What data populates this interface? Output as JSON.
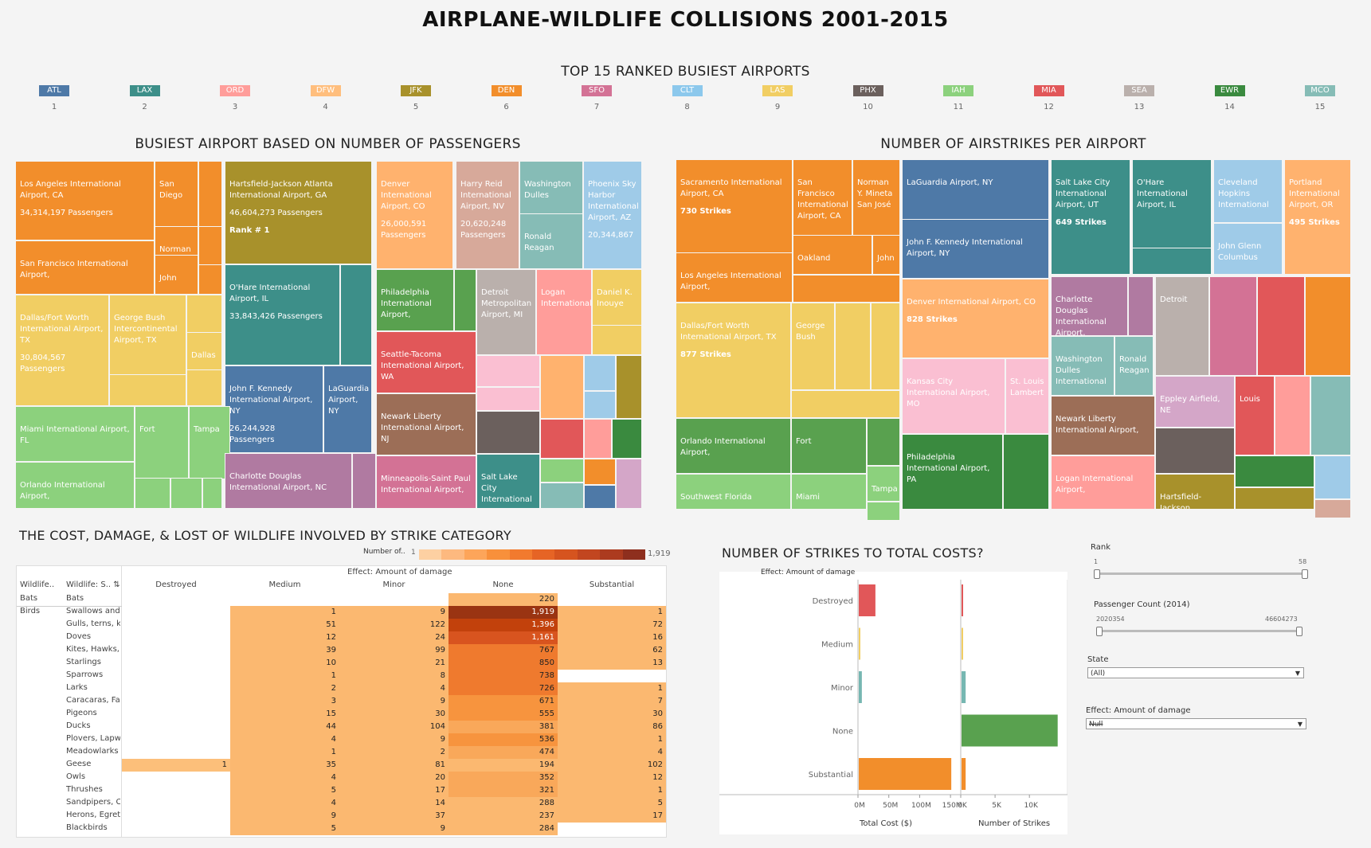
{
  "title": "AIRPLANE-WILDLIFE COLLISIONS 2001-2015",
  "ranked": {
    "title": "TOP 15 RANKED BUSIEST AIRPORTS",
    "items": [
      {
        "code": "ATL",
        "rank": "1",
        "color": "#4e79a7"
      },
      {
        "code": "LAX",
        "rank": "2",
        "color": "#3d8f89"
      },
      {
        "code": "ORD",
        "rank": "3",
        "color": "#ff9d9a"
      },
      {
        "code": "DFW",
        "rank": "4",
        "color": "#ffbe7d"
      },
      {
        "code": "JFK",
        "rank": "5",
        "color": "#a8912b"
      },
      {
        "code": "DEN",
        "rank": "6",
        "color": "#f28e2b"
      },
      {
        "code": "SFO",
        "rank": "7",
        "color": "#d37295"
      },
      {
        "code": "CLT",
        "rank": "8",
        "color": "#8cc8ec"
      },
      {
        "code": "LAS",
        "rank": "9",
        "color": "#f1ce63"
      },
      {
        "code": "PHX",
        "rank": "10",
        "color": "#6b605d"
      },
      {
        "code": "IAH",
        "rank": "11",
        "color": "#8cd17d"
      },
      {
        "code": "MIA",
        "rank": "12",
        "color": "#e15759"
      },
      {
        "code": "SEA",
        "rank": "13",
        "color": "#bab0ac"
      },
      {
        "code": "EWR",
        "rank": "14",
        "color": "#3a8a3f"
      },
      {
        "code": "MCO",
        "rank": "15",
        "color": "#86bcb6"
      }
    ]
  },
  "passengers": {
    "title": "BUSIEST AIRPORT BASED ON NUMBER OF PASSENGERS",
    "cells": [
      {
        "name": "Los Angeles International Airport, CA",
        "value": "34,314,197 Passengers"
      },
      {
        "name": "San Diego",
        "value": ""
      },
      {
        "name": "Norman",
        "value": ""
      },
      {
        "name": "John",
        "value": ""
      },
      {
        "name": "San Francisco International Airport,",
        "value": ""
      },
      {
        "name": "Hartsfield-Jackson Atlanta International Airport, GA",
        "value": "46,604,273 Passengers",
        "extra": "Rank # 1"
      },
      {
        "name": "Denver International Airport, CO",
        "value": "26,000,591 Passengers"
      },
      {
        "name": "Harry Reid International Airport, NV",
        "value": "20,620,248 Passengers"
      },
      {
        "name": "Washington Dulles",
        "value": ""
      },
      {
        "name": "Ronald Reagan",
        "value": ""
      },
      {
        "name": "Phoenix Sky Harbor International Airport, AZ",
        "value": "20,344,867"
      },
      {
        "name": "Dallas/Fort Worth International Airport, TX",
        "value": "30,804,567 Passengers"
      },
      {
        "name": "George Bush Intercontinental Airport, TX",
        "value": ""
      },
      {
        "name": "Dallas",
        "value": ""
      },
      {
        "name": "O'Hare International Airport, IL",
        "value": "33,843,426 Passengers"
      },
      {
        "name": "Philadelphia International Airport,",
        "value": ""
      },
      {
        "name": "Detroit Metropolitan Airport, MI",
        "value": ""
      },
      {
        "name": "Logan International",
        "value": ""
      },
      {
        "name": "Daniel K. Inouye",
        "value": ""
      },
      {
        "name": "Seattle-Tacoma International Airport, WA",
        "value": ""
      },
      {
        "name": "John F. Kennedy International Airport, NY",
        "value": "26,244,928 Passengers"
      },
      {
        "name": "LaGuardia Airport, NY",
        "value": ""
      },
      {
        "name": "Newark Liberty International Airport, NJ",
        "value": ""
      },
      {
        "name": "Miami International Airport, FL",
        "value": ""
      },
      {
        "name": "Fort",
        "value": ""
      },
      {
        "name": "Tampa",
        "value": ""
      },
      {
        "name": "Orlando International Airport,",
        "value": ""
      },
      {
        "name": "Charlotte Douglas International Airport, NC",
        "value": ""
      },
      {
        "name": "Minneapolis-Saint Paul International Airport,",
        "value": ""
      },
      {
        "name": "Salt Lake City International",
        "value": ""
      }
    ]
  },
  "strikes": {
    "title": "NUMBER OF AIRSTRIKES PER AIRPORT",
    "cells": [
      {
        "name": "Sacramento International Airport, CA",
        "value": "730 Strikes"
      },
      {
        "name": "San Francisco International Airport, CA",
        "value": ""
      },
      {
        "name": "Norman Y. Mineta San José",
        "value": ""
      },
      {
        "name": "LaGuardia Airport, NY",
        "value": ""
      },
      {
        "name": "Salt Lake City International Airport, UT",
        "value": "649 Strikes"
      },
      {
        "name": "O'Hare International Airport, IL",
        "value": ""
      },
      {
        "name": "Cleveland Hopkins International",
        "value": ""
      },
      {
        "name": "Portland International Airport, OR",
        "value": "495 Strikes"
      },
      {
        "name": "Oakland",
        "value": ""
      },
      {
        "name": "John",
        "value": ""
      },
      {
        "name": "John F. Kennedy International Airport, NY",
        "value": ""
      },
      {
        "name": "John Glenn Columbus",
        "value": ""
      },
      {
        "name": "Los Angeles International Airport,",
        "value": ""
      },
      {
        "name": "Denver International Airport, CO",
        "value": "828 Strikes"
      },
      {
        "name": "Charlotte Douglas International Airport,",
        "value": ""
      },
      {
        "name": "Detroit",
        "value": ""
      },
      {
        "name": "Dallas/Fort Worth International Airport, TX",
        "value": "877 Strikes"
      },
      {
        "name": "George Bush",
        "value": ""
      },
      {
        "name": "Washington Dulles International",
        "value": ""
      },
      {
        "name": "Ronald Reagan",
        "value": ""
      },
      {
        "name": "Kansas City International Airport, MO",
        "value": ""
      },
      {
        "name": "St. Louis Lambert",
        "value": ""
      },
      {
        "name": "Eppley Airfield, NE",
        "value": ""
      },
      {
        "name": "Louis",
        "value": ""
      },
      {
        "name": "Newark Liberty International Airport,",
        "value": ""
      },
      {
        "name": "Orlando International Airport,",
        "value": ""
      },
      {
        "name": "Fort",
        "value": ""
      },
      {
        "name": "Philadelphia International Airport, PA",
        "value": ""
      },
      {
        "name": "Southwest Florida",
        "value": ""
      },
      {
        "name": "Miami",
        "value": ""
      },
      {
        "name": "Tampa",
        "value": ""
      },
      {
        "name": "Logan International Airport,",
        "value": ""
      },
      {
        "name": "Hartsfield-Jackson",
        "value": ""
      }
    ]
  },
  "heatmap": {
    "title": "THE COST, DAMAGE, & LOST OF WILDLIFE INVOLVED BY STRIKE CATEGORY",
    "legend_label": "Number of..",
    "legend_min": "1",
    "legend_max": "1,919",
    "col_header1": "Wildlife..",
    "col_header2": "Wildlife: S..",
    "effect_label": "Effect: Amount of damage",
    "columns": [
      "Destroyed",
      "Medium",
      "Minor",
      "None",
      "Substantial"
    ],
    "groups": [
      {
        "name": "Bats",
        "rows": [
          {
            "label": "Bats",
            "values": [
              "",
              "",
              "",
              "220",
              ""
            ]
          }
        ]
      },
      {
        "name": "Birds",
        "rows": [
          {
            "label": "Swallows and M..",
            "values": [
              "",
              "1",
              "9",
              "1,919",
              "1"
            ]
          },
          {
            "label": "Gulls, terns, kit..",
            "values": [
              "",
              "51",
              "122",
              "1,396",
              "72"
            ]
          },
          {
            "label": "Doves",
            "values": [
              "",
              "12",
              "24",
              "1,161",
              "16"
            ]
          },
          {
            "label": "Kites, Hawks, E..",
            "values": [
              "",
              "39",
              "99",
              "767",
              "62"
            ]
          },
          {
            "label": "Starlings",
            "values": [
              "",
              "10",
              "21",
              "850",
              "13"
            ]
          },
          {
            "label": "Sparrows",
            "values": [
              "",
              "1",
              "8",
              "738",
              ""
            ]
          },
          {
            "label": "Larks",
            "values": [
              "",
              "2",
              "4",
              "726",
              "1"
            ]
          },
          {
            "label": "Caracaras, Falc..",
            "values": [
              "",
              "3",
              "9",
              "671",
              "7"
            ]
          },
          {
            "label": "Pigeons",
            "values": [
              "",
              "15",
              "30",
              "555",
              "30"
            ]
          },
          {
            "label": "Ducks",
            "values": [
              "",
              "44",
              "104",
              "381",
              "86"
            ]
          },
          {
            "label": "Plovers, Lapwin..",
            "values": [
              "",
              "4",
              "9",
              "536",
              "1"
            ]
          },
          {
            "label": "Meadowlarks",
            "values": [
              "",
              "1",
              "2",
              "474",
              "4"
            ]
          },
          {
            "label": "Geese",
            "values": [
              "1",
              "35",
              "81",
              "194",
              "102"
            ]
          },
          {
            "label": "Owls",
            "values": [
              "",
              "4",
              "20",
              "352",
              "12"
            ]
          },
          {
            "label": "Thrushes",
            "values": [
              "",
              "5",
              "17",
              "321",
              "1"
            ]
          },
          {
            "label": "Sandpipers, Cur..",
            "values": [
              "",
              "4",
              "14",
              "288",
              "5"
            ]
          },
          {
            "label": "Herons, Egrets, ..",
            "values": [
              "",
              "9",
              "37",
              "237",
              "17"
            ]
          },
          {
            "label": "Blackbirds",
            "values": [
              "",
              "5",
              "9",
              "284",
              ""
            ]
          }
        ]
      }
    ]
  },
  "costs": {
    "title": "NUMBER OF STRIKES TO TOTAL COSTS?",
    "effect_label": "Effect: Amount of damage",
    "x1_label": "Total Cost ($)",
    "x2_label": "Number of Strikes",
    "x1_ticks": [
      "0M",
      "50M",
      "100M",
      "150M"
    ],
    "x2_ticks": [
      "0K",
      "5K",
      "10K"
    ]
  },
  "chart_data": {
    "type": "bar",
    "categories": [
      "Destroyed",
      "Medium",
      "Minor",
      "None",
      "Substantial"
    ],
    "series": [
      {
        "name": "Total Cost ($)",
        "values": [
          27000000,
          2000000,
          5000000,
          0,
          150000000
        ],
        "colors": [
          "#e15759",
          "#f1ce63",
          "#76b7b2",
          "#59a14f",
          "#f28e2b"
        ]
      },
      {
        "name": "Number of Strikes",
        "values": [
          20,
          150,
          600,
          14000,
          600
        ],
        "colors": [
          "#e15759",
          "#f1ce63",
          "#76b7b2",
          "#59a14f",
          "#f28e2b"
        ]
      }
    ],
    "xlim1": [
      0,
      155000000
    ],
    "xlim2": [
      0,
      14500
    ]
  },
  "filters": {
    "rank_label": "Rank",
    "rank_min": "1",
    "rank_max": "58",
    "pass_label": "Passenger Count (2014)",
    "pass_min": "2020354",
    "pass_max": "46604273",
    "state_label": "State",
    "state_value": "(All)",
    "effect_label": "Effect: Amount of damage",
    "effect_value": "Null"
  }
}
